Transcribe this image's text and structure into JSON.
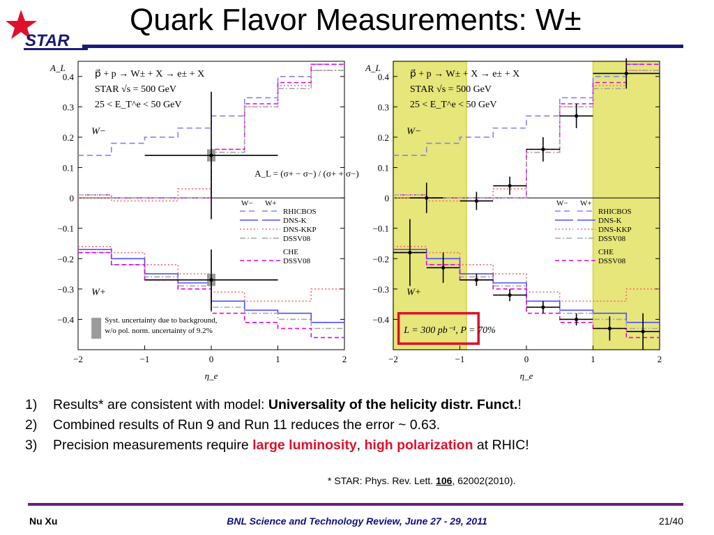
{
  "slide": {
    "logo_text": "STAR",
    "title": "Quark Flavor Measurements: W±",
    "bullets": [
      {
        "num": "1)",
        "parts": [
          {
            "text": "Results* are consistent with model: ",
            "style": "normal"
          },
          {
            "text": "Universality of the helicity distr. Funct.",
            "style": "bold"
          },
          {
            "text": "!",
            "style": "normal"
          }
        ]
      },
      {
        "num": "2)",
        "parts": [
          {
            "text": "Combined results of Run 9 and Run 11 reduces the error ~ 0.63.",
            "style": "normal"
          }
        ]
      },
      {
        "num": "3)",
        "parts": [
          {
            "text": "Precision measurements require ",
            "style": "normal"
          },
          {
            "text": "large luminosity",
            "style": "red"
          },
          {
            "text": ", ",
            "style": "normal"
          },
          {
            "text": "high polarization",
            "style": "red"
          },
          {
            "text": " at RHIC!",
            "style": "normal"
          }
        ]
      }
    ],
    "reference": {
      "pre": "* STAR: Phys. Rev. Lett. ",
      "volume": "106",
      "post": ", 62002(2010)."
    },
    "footer": {
      "left": "Nu Xu",
      "center": "BNL Science and Technology Review, June 27 - 29, 2011",
      "right": "21/40"
    }
  },
  "colors": {
    "title_rule": "#1a1a7a",
    "footer_rule": "#6a1e78",
    "highlight_band": "#e6e67a",
    "box_red": "#e0102a",
    "RHICBOS": "#8080ff",
    "DNS-K": "#4d4dff",
    "DNS-KKP": "#ff6666",
    "DSSV08": "#a6a6a6",
    "CHE_DSSV08": "#e600e6",
    "data": "#000000"
  },
  "chart_data": [
    {
      "type": "line",
      "panel": "left",
      "ylabel": "A_L",
      "xlabel": "η_e",
      "xlim": [
        -2,
        2
      ],
      "ylim": [
        -0.5,
        0.45
      ],
      "xticks": [
        -2,
        -1,
        0,
        1,
        2
      ],
      "yticks": [
        -0.4,
        -0.3,
        -0.2,
        -0.1,
        0,
        0.1,
        0.2,
        0.3,
        0.4
      ],
      "ytick_labels": [
        "−0.4",
        "−0.3",
        "−0.2",
        "−0.1",
        "0",
        "0.1",
        "0.2",
        "0.3",
        "0.4"
      ],
      "xtick_labels": [
        "−2",
        "−1",
        "0",
        "1",
        "2"
      ],
      "header_lines": [
        "p⃗ + p → W± + X → e± + X",
        "STAR  √s = 500 GeV",
        "25 < E_T^e < 50 GeV"
      ],
      "formula": "A_L = (σ+ − σ−) / (σ+ + σ−)",
      "region_labels": {
        "upper": "W−",
        "lower": "W+"
      },
      "legend": {
        "header": [
          "W−",
          "W+"
        ],
        "entries": [
          "RHICBOS",
          "DNS-K",
          "DNS-KKP",
          "DSSV08",
          "CHE",
          "DSSV08"
        ]
      },
      "syst_note": [
        "Syst. uncertainty due to background,",
        "w/o pol. norm. uncertainty of 9.2%"
      ],
      "bin_edges": [
        -2,
        -1.5,
        -1,
        -0.5,
        0,
        0.5,
        1,
        1.5,
        2
      ],
      "series": [
        {
          "name": "RHICBOS",
          "group": "W-",
          "values": [
            0.14,
            0.18,
            0.2,
            0.23,
            0.27,
            0.33,
            0.4,
            0.44
          ]
        },
        {
          "name": "DNS-KKP",
          "group": "W-",
          "values": [
            0.0,
            -0.01,
            -0.01,
            0.03,
            0.16,
            0.3,
            0.37,
            0.42
          ]
        },
        {
          "name": "CHE_DSSV08",
          "group": "W-",
          "values": [
            0.01,
            0.0,
            0.0,
            0.0,
            0.16,
            0.31,
            0.38,
            0.44
          ]
        },
        {
          "name": "DSSV08",
          "group": "W-",
          "values": [
            0.01,
            0.0,
            0.0,
            0.0,
            0.15,
            0.3,
            0.36,
            0.42
          ]
        },
        {
          "name": "DNS-KKP",
          "group": "W+",
          "values": [
            -0.16,
            -0.18,
            -0.22,
            -0.25,
            -0.31,
            -0.34,
            -0.34,
            -0.3
          ]
        },
        {
          "name": "DNS-K",
          "group": "W+",
          "values": [
            -0.17,
            -0.2,
            -0.25,
            -0.28,
            -0.34,
            -0.37,
            -0.38,
            -0.41
          ]
        },
        {
          "name": "DSSV08",
          "group": "W+",
          "values": [
            -0.18,
            -0.22,
            -0.26,
            -0.29,
            -0.36,
            -0.38,
            -0.4,
            -0.43
          ]
        },
        {
          "name": "CHE_DSSV08",
          "group": "W+",
          "values": [
            -0.18,
            -0.22,
            -0.27,
            -0.3,
            -0.38,
            -0.41,
            -0.43,
            -0.46
          ]
        }
      ],
      "points": [
        {
          "label": "W−",
          "x": 0.0,
          "y": 0.14,
          "xerr": 1.0,
          "yerr": 0.21,
          "syst": 0.02
        },
        {
          "label": "W+",
          "x": 0.0,
          "y": -0.27,
          "xerr": 1.0,
          "yerr": 0.1,
          "syst": 0.02
        }
      ]
    },
    {
      "type": "line",
      "panel": "right",
      "ylabel": "A_L",
      "xlabel": "η_e",
      "xlim": [
        -2,
        2
      ],
      "ylim": [
        -0.5,
        0.45
      ],
      "xticks": [
        -2,
        -1,
        0,
        1,
        2
      ],
      "yticks": [
        -0.4,
        -0.3,
        -0.2,
        -0.1,
        0,
        0.1,
        0.2,
        0.3,
        0.4
      ],
      "ytick_labels": [
        "−0.4",
        "−0.3",
        "−0.2",
        "−0.1",
        "0",
        "0.1",
        "0.2",
        "0.3",
        "0.4"
      ],
      "xtick_labels": [
        "−2",
        "−1",
        "0",
        "1",
        "2"
      ],
      "header_lines": [
        "p⃗ + p → W± + X → e± + X",
        "STAR  √s = 500 GeV",
        "25 < E_T^e < 50 GeV"
      ],
      "region_labels": {
        "upper": "W−",
        "lower": "W+"
      },
      "legend": {
        "header": [
          "W−",
          "W+"
        ],
        "entries": [
          "RHICBOS",
          "DNS-K",
          "DNS-KKP",
          "DSSV08",
          "CHE",
          "DSSV08"
        ]
      },
      "annotation": "L = 300 pb⁻¹, P = 70%",
      "highlight_ranges": [
        [
          -2,
          -0.9
        ],
        [
          1,
          2
        ]
      ],
      "bin_edges": [
        -2,
        -1.5,
        -1,
        -0.5,
        0,
        0.5,
        1,
        1.5,
        2
      ],
      "series": [
        {
          "name": "RHICBOS",
          "group": "W-",
          "values": [
            0.14,
            0.18,
            0.2,
            0.23,
            0.27,
            0.33,
            0.4,
            0.44
          ]
        },
        {
          "name": "DNS-KKP",
          "group": "W-",
          "values": [
            0.0,
            -0.01,
            -0.01,
            0.03,
            0.16,
            0.3,
            0.37,
            0.42
          ]
        },
        {
          "name": "CHE_DSSV08",
          "group": "W-",
          "values": [
            0.01,
            0.0,
            0.0,
            0.0,
            0.16,
            0.31,
            0.38,
            0.44
          ]
        },
        {
          "name": "DSSV08",
          "group": "W-",
          "values": [
            0.01,
            0.0,
            0.0,
            0.0,
            0.15,
            0.3,
            0.36,
            0.42
          ]
        },
        {
          "name": "DNS-KKP",
          "group": "W+",
          "values": [
            -0.16,
            -0.18,
            -0.22,
            -0.25,
            -0.31,
            -0.34,
            -0.34,
            -0.3
          ]
        },
        {
          "name": "DNS-K",
          "group": "W+",
          "values": [
            -0.17,
            -0.2,
            -0.25,
            -0.28,
            -0.34,
            -0.37,
            -0.38,
            -0.41
          ]
        },
        {
          "name": "DSSV08",
          "group": "W+",
          "values": [
            -0.18,
            -0.22,
            -0.26,
            -0.29,
            -0.36,
            -0.38,
            -0.4,
            -0.43
          ]
        },
        {
          "name": "CHE_DSSV08",
          "group": "W+",
          "values": [
            -0.18,
            -0.22,
            -0.27,
            -0.3,
            -0.38,
            -0.41,
            -0.43,
            -0.46
          ]
        }
      ],
      "points": [
        {
          "label": "W−",
          "x": -1.5,
          "y": 0.0,
          "xerr": 0.25,
          "yerr": 0.05
        },
        {
          "label": "W−",
          "x": -0.75,
          "y": -0.01,
          "xerr": 0.25,
          "yerr": 0.03
        },
        {
          "label": "W−",
          "x": -0.25,
          "y": 0.04,
          "xerr": 0.25,
          "yerr": 0.03
        },
        {
          "label": "W−",
          "x": 0.25,
          "y": 0.16,
          "xerr": 0.25,
          "yerr": 0.04
        },
        {
          "label": "W−",
          "x": 0.75,
          "y": 0.27,
          "xerr": 0.25,
          "yerr": 0.04
        },
        {
          "label": "W−",
          "x": 1.5,
          "y": 0.41,
          "xerr": 0.5,
          "yerr": 0.05
        },
        {
          "label": "W+",
          "x": -1.75,
          "y": -0.18,
          "xerr": 0.25,
          "yerr": 0.11
        },
        {
          "label": "W+",
          "x": -1.25,
          "y": -0.23,
          "xerr": 0.25,
          "yerr": 0.05
        },
        {
          "label": "W+",
          "x": -0.75,
          "y": -0.27,
          "xerr": 0.25,
          "yerr": 0.02
        },
        {
          "label": "W+",
          "x": -0.25,
          "y": -0.32,
          "xerr": 0.25,
          "yerr": 0.02
        },
        {
          "label": "W+",
          "x": 0.25,
          "y": -0.36,
          "xerr": 0.25,
          "yerr": 0.02
        },
        {
          "label": "W+",
          "x": 0.75,
          "y": -0.4,
          "xerr": 0.25,
          "yerr": 0.02
        },
        {
          "label": "W+",
          "x": 1.25,
          "y": -0.43,
          "xerr": 0.25,
          "yerr": 0.04
        },
        {
          "label": "W+",
          "x": 1.75,
          "y": -0.44,
          "xerr": 0.25,
          "yerr": 0.06
        }
      ]
    }
  ]
}
